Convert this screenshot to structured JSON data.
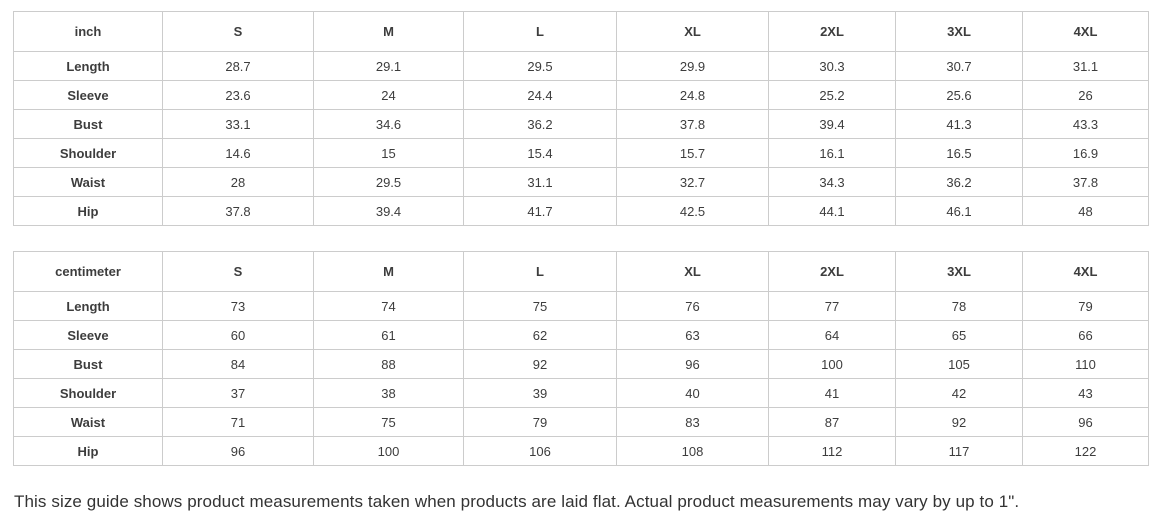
{
  "tables": [
    {
      "unit_label": "inch",
      "size_headers": [
        "S",
        "M",
        "L",
        "XL",
        "2XL",
        "3XL",
        "4XL"
      ],
      "rows": [
        {
          "label": "Length",
          "values": [
            "28.7",
            "29.1",
            "29.5",
            "29.9",
            "30.3",
            "30.7",
            "31.1"
          ]
        },
        {
          "label": "Sleeve",
          "values": [
            "23.6",
            "24",
            "24.4",
            "24.8",
            "25.2",
            "25.6",
            "26"
          ]
        },
        {
          "label": "Bust",
          "values": [
            "33.1",
            "34.6",
            "36.2",
            "37.8",
            "39.4",
            "41.3",
            "43.3"
          ]
        },
        {
          "label": "Shoulder",
          "values": [
            "14.6",
            "15",
            "15.4",
            "15.7",
            "16.1",
            "16.5",
            "16.9"
          ]
        },
        {
          "label": "Waist",
          "values": [
            "28",
            "29.5",
            "31.1",
            "32.7",
            "34.3",
            "36.2",
            "37.8"
          ]
        },
        {
          "label": "Hip",
          "values": [
            "37.8",
            "39.4",
            "41.7",
            "42.5",
            "44.1",
            "46.1",
            "48"
          ]
        }
      ]
    },
    {
      "unit_label": "centimeter",
      "size_headers": [
        "S",
        "M",
        "L",
        "XL",
        "2XL",
        "3XL",
        "4XL"
      ],
      "rows": [
        {
          "label": "Length",
          "values": [
            "73",
            "74",
            "75",
            "76",
            "77",
            "78",
            "79"
          ]
        },
        {
          "label": "Sleeve",
          "values": [
            "60",
            "61",
            "62",
            "63",
            "64",
            "65",
            "66"
          ]
        },
        {
          "label": "Bust",
          "values": [
            "84",
            "88",
            "92",
            "96",
            "100",
            "105",
            "110"
          ]
        },
        {
          "label": "Shoulder",
          "values": [
            "37",
            "38",
            "39",
            "40",
            "41",
            "42",
            "43"
          ]
        },
        {
          "label": "Waist",
          "values": [
            "71",
            "75",
            "79",
            "83",
            "87",
            "92",
            "96"
          ]
        },
        {
          "label": "Hip",
          "values": [
            "96",
            "100",
            "106",
            "108",
            "112",
            "117",
            "122"
          ]
        }
      ]
    }
  ],
  "footer_note": "This size guide shows product measurements taken when products are laid flat. Actual product measurements may vary by up to 1\".",
  "colors": {
    "background": "#ffffff",
    "border": "#cccccc",
    "cell_text": "#3d3d3d",
    "note_text": "#333333"
  }
}
